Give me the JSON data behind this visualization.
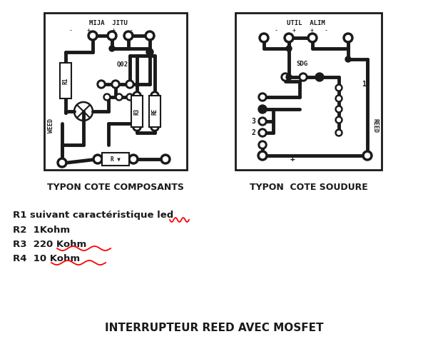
{
  "bg_color": "#ffffff",
  "title_bottom": "INTERRUPTEUR REED AVEC MOSFET",
  "label_left": "TYPON COTE COMPOSANTS",
  "label_right": "TYPON  COTE SOUDURE",
  "resistors": [
    "R1 suivant caractéristique led",
    "R2  1Kohm",
    "R3  220 Kohm",
    "R4  10 Kohm"
  ],
  "figsize": [
    6.0,
    4.82
  ],
  "dpi": 100
}
